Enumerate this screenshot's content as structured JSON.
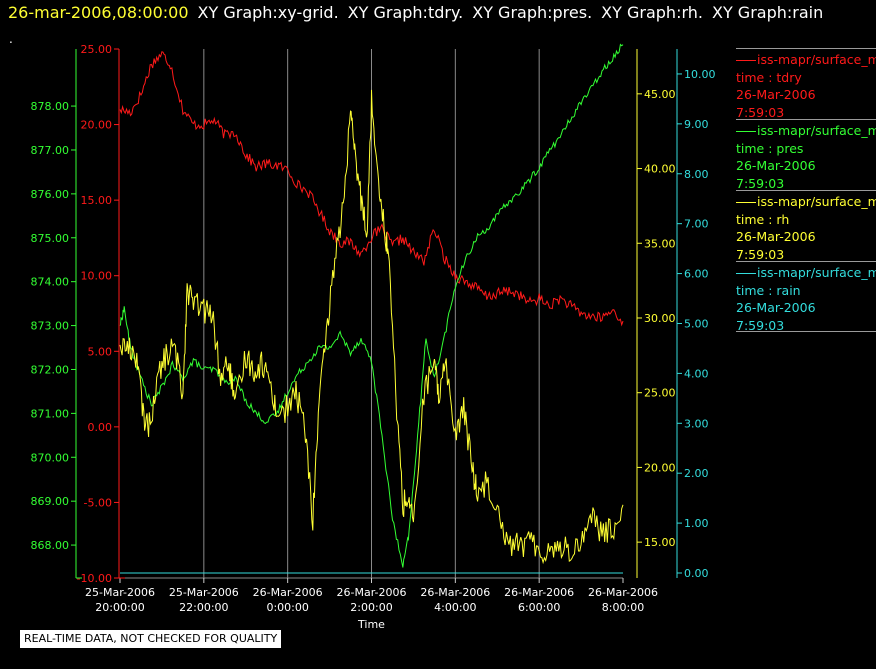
{
  "header": {
    "timestamp": "26-mar-2006,08:00:00",
    "graphs": [
      "XY Graph:xy-grid.",
      "XY Graph:tdry.",
      "XY Graph:pres.",
      "XY Graph:rh.",
      "XY Graph:rain"
    ],
    "dot": "."
  },
  "quality_note": "REAL-TIME DATA, NOT CHECKED FOR QUALITY",
  "legend": [
    {
      "name": "iss-mapr/surface_met",
      "line2": "time : tdry",
      "date": "26-Mar-2006",
      "time": "7:59:03",
      "color": "#ff1a1a"
    },
    {
      "name": "iss-mapr/surface_met",
      "line2": "time : pres",
      "date": "26-Mar-2006",
      "time": "7:59:03",
      "color": "#33ff33"
    },
    {
      "name": "iss-mapr/surface_met",
      "line2": "time : rh",
      "date": "26-Mar-2006",
      "time": "7:59:03",
      "color": "#ffff33"
    },
    {
      "name": "iss-mapr/surface_met",
      "line2": "time : rain",
      "date": "26-Mar-2006",
      "time": "7:59:03",
      "color": "#33dddd"
    }
  ],
  "chart_data": {
    "type": "line",
    "xlabel": "Time",
    "x_ticks": [
      {
        "line1": "25-Mar-2006",
        "line2": "20:00:00"
      },
      {
        "line1": "25-Mar-2006",
        "line2": "22:00:00"
      },
      {
        "line1": "26-Mar-2006",
        "line2": "0:00:00"
      },
      {
        "line1": "26-Mar-2006",
        "line2": "2:00:00"
      },
      {
        "line1": "26-Mar-2006",
        "line2": "4:00:00"
      },
      {
        "line1": "26-Mar-2006",
        "line2": "6:00:00"
      },
      {
        "line1": "26-Mar-2006",
        "line2": "8:00:00"
      }
    ],
    "x_hours_range": [
      20,
      32
    ],
    "grid": "vertical",
    "axes": {
      "pres": {
        "ticks": [
          "868.00",
          "869.00",
          "870.00",
          "871.00",
          "872.00",
          "873.00",
          "874.00",
          "875.00",
          "876.00",
          "877.00",
          "878.00"
        ],
        "range": [
          867.25,
          879.3
        ],
        "color": "#33ff33"
      },
      "tdry": {
        "ticks": [
          "-10.00",
          "-5.00",
          "0.00",
          "5.00",
          "10.00",
          "15.00",
          "20.00",
          "25.00"
        ],
        "range": [
          -10,
          25
        ],
        "color": "#ff1a1a"
      },
      "rh": {
        "ticks": [
          "15.00",
          "20.00",
          "25.00",
          "30.00",
          "35.00",
          "40.00",
          "45.00"
        ],
        "range": [
          12.6,
          48.0
        ],
        "color": "#ffff33"
      },
      "rain": {
        "ticks": [
          "0.00",
          "1.00",
          "2.00",
          "3.00",
          "4.00",
          "5.00",
          "6.00",
          "7.00",
          "8.00",
          "9.00",
          "10.00"
        ],
        "range": [
          -0.1,
          10.5
        ],
        "color": "#33dddd"
      }
    },
    "series": [
      {
        "name": "tdry",
        "axis": "tdry",
        "x": [
          20.0,
          20.25,
          20.5,
          20.75,
          21.0,
          21.2,
          21.5,
          21.75,
          22.0,
          22.25,
          22.5,
          22.75,
          23.0,
          23.25,
          23.5,
          23.75,
          24.0,
          24.25,
          24.5,
          24.75,
          25.0,
          25.25,
          25.5,
          25.75,
          26.0,
          26.25,
          26.5,
          26.75,
          27.0,
          27.25,
          27.5,
          27.75,
          28.0,
          28.25,
          28.5,
          28.75,
          29.0,
          29.25,
          29.5,
          29.75,
          30.0,
          30.25,
          30.5,
          30.75,
          31.0,
          31.25,
          31.5,
          31.75,
          32.0
        ],
        "y": [
          21.0,
          20.8,
          22.0,
          24.0,
          24.7,
          24.0,
          21.0,
          20.0,
          20.0,
          20.3,
          19.3,
          19.5,
          18.0,
          17.2,
          17.4,
          17.3,
          17.0,
          16.0,
          15.5,
          14.3,
          13.0,
          12.2,
          12.2,
          11.4,
          12.6,
          13.1,
          12.0,
          12.5,
          11.5,
          11.0,
          13.1,
          11.1,
          10.0,
          9.6,
          9.2,
          8.6,
          8.8,
          9.0,
          8.8,
          8.2,
          8.5,
          8.0,
          8.5,
          8.0,
          7.5,
          7.3,
          7.2,
          7.7,
          7.0
        ]
      },
      {
        "name": "pres",
        "axis": "pres",
        "x": [
          20.0,
          20.1,
          20.25,
          20.5,
          20.75,
          21.0,
          21.25,
          21.5,
          21.75,
          22.0,
          22.25,
          22.5,
          22.75,
          23.0,
          23.25,
          23.5,
          23.75,
          24.0,
          24.25,
          24.5,
          24.75,
          25.0,
          25.25,
          25.5,
          25.75,
          26.0,
          26.25,
          26.5,
          26.75,
          26.9,
          27.1,
          27.3,
          27.5,
          27.75,
          28.0,
          28.25,
          28.5,
          28.75,
          29.0,
          29.25,
          29.5,
          29.75,
          30.0,
          30.25,
          30.5,
          30.75,
          31.0,
          31.25,
          31.5,
          31.75,
          32.0
        ],
        "y": [
          873.0,
          873.4,
          872.5,
          871.8,
          871.2,
          871.6,
          872.1,
          871.8,
          872.2,
          872.0,
          872.0,
          871.7,
          871.8,
          871.3,
          871.0,
          870.8,
          871.0,
          871.5,
          871.9,
          872.2,
          872.5,
          872.5,
          872.8,
          872.4,
          872.7,
          872.2,
          870.5,
          868.6,
          867.5,
          868.3,
          870.5,
          872.7,
          871.8,
          872.8,
          873.9,
          874.5,
          875.0,
          875.2,
          875.5,
          875.8,
          876.0,
          876.3,
          876.6,
          877.0,
          877.3,
          877.7,
          878.1,
          878.4,
          878.8,
          879.1,
          879.4
        ]
      },
      {
        "name": "rh",
        "axis": "rh",
        "x": [
          20.0,
          20.2,
          20.4,
          20.55,
          20.7,
          20.9,
          21.1,
          21.3,
          21.5,
          21.6,
          21.75,
          22.0,
          22.2,
          22.4,
          22.6,
          22.75,
          23.0,
          23.2,
          23.4,
          23.6,
          23.75,
          24.0,
          24.2,
          24.4,
          24.6,
          24.75,
          24.9,
          25.1,
          25.3,
          25.5,
          25.6,
          25.75,
          25.9,
          26.0,
          26.15,
          26.3,
          26.4,
          26.6,
          26.75,
          26.9,
          27.0,
          27.25,
          27.5,
          27.6,
          27.75,
          28.0,
          28.2,
          28.4,
          28.5,
          28.75,
          29.0,
          29.25,
          29.5,
          29.75,
          30.0,
          30.25,
          30.5,
          30.75,
          31.0,
          31.25,
          31.5,
          31.75,
          32.0
        ],
        "y": [
          28.2,
          28.0,
          27.5,
          23.5,
          22.8,
          26.0,
          27.5,
          28.0,
          25.0,
          32.0,
          31.0,
          30.5,
          30.2,
          26.0,
          27.0,
          24.0,
          27.5,
          26.5,
          27.0,
          25.5,
          23.5,
          24.0,
          25.0,
          23.0,
          16.5,
          24.5,
          28.0,
          33.5,
          37.0,
          43.5,
          41.0,
          38.0,
          36.0,
          44.5,
          40.0,
          36.0,
          34.5,
          24.0,
          17.5,
          18.0,
          16.0,
          25.0,
          27.0,
          24.5,
          27.5,
          22.0,
          24.0,
          20.0,
          18.5,
          19.0,
          17.5,
          15.0,
          14.8,
          15.0,
          14.5,
          14.5,
          14.8,
          14.4,
          15.0,
          17.0,
          15.5,
          15.8,
          17.5
        ]
      },
      {
        "name": "rain",
        "axis": "rain",
        "x": [
          20.0,
          32.0
        ],
        "y": [
          0.0,
          0.0
        ]
      }
    ]
  }
}
